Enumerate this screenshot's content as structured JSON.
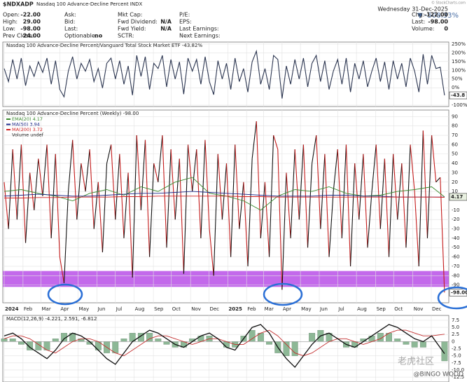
{
  "header": {
    "symbol": "$NDXADP",
    "name": "Nasdaq 100 Advance-Decline Percent INDX",
    "date": "Wednesday 31-Dec-2025",
    "change": "▼ -508.33%",
    "credit": "© StockCharts.com",
    "columns": [
      [
        {
          "label": "Open:",
          "value": "-22.00"
        },
        {
          "label": "High:",
          "value": "29.00"
        },
        {
          "label": "Low:",
          "value": "-98.00"
        },
        {
          "label": "Prev Close:",
          "value": "24.00"
        }
      ],
      [
        {
          "label": "Ask:"
        },
        {
          "label": "Bid:"
        },
        {
          "label": "Last:"
        },
        {
          "label": "Optionable:",
          "value": "no"
        }
      ],
      [
        {
          "label": "Mkt Cap:"
        },
        {
          "label": "Fwd Dividend:",
          "value": "N/A"
        },
        {
          "label": "Fwd Yield:",
          "value": "N/A"
        },
        {
          "label": "SCTR:"
        }
      ],
      [
        {
          "label": "P/E:"
        },
        {
          "label": "EPS:"
        },
        {
          "label": "Last Earnings:"
        },
        {
          "label": "Next Earnings:"
        }
      ],
      [
        {
          "label": "Chg:",
          "value": "-122.00"
        },
        {
          "label": "Last:",
          "value": "-98.00"
        },
        {
          "label": "Volume:",
          "value": "0"
        }
      ]
    ]
  },
  "watermark": {
    "brand": "老虎社区",
    "author": "@BINGO WOOD"
  },
  "chart_data": [
    {
      "type": "line",
      "title": "Nasdaq 100 Advance-Decline Percent/Vanguard Total Stock Market ETF -43.82%",
      "xlim": [
        0,
        104
      ],
      "ylim": [
        -108,
        262
      ],
      "yticks": [
        {
          "value": 250,
          "label": "250%"
        },
        {
          "value": 200,
          "label": "200%"
        },
        {
          "value": 150,
          "label": "150%"
        },
        {
          "value": 100,
          "label": "100%"
        },
        {
          "value": 50,
          "label": "50%"
        },
        {
          "value": 0,
          "label": "0%"
        },
        {
          "value": -100,
          "label": "-100%"
        }
      ],
      "grid": true,
      "tags": [
        {
          "value": -43.82,
          "label": "-43.8",
          "color": "#ffffff"
        }
      ],
      "series": [
        {
          "name": "Nasdaq 100 Advance-Decline Percent/Vanguard Total Stock Market ETF",
          "color": "#2b3550",
          "values": [
            110,
            35,
            162,
            50,
            170,
            12,
            125,
            65,
            148,
            88,
            170,
            20,
            155,
            -10,
            -52,
            95,
            178,
            50,
            140,
            95,
            162,
            35,
            110,
            -2,
            140,
            170,
            50,
            155,
            20,
            125,
            -43,
            185,
            65,
            178,
            -10,
            140,
            110,
            185,
            5,
            162,
            50,
            148,
            -37,
            170,
            95,
            162,
            20,
            178,
            35,
            -40,
            155,
            50,
            140,
            -10,
            170,
            35,
            110,
            -25,
            148,
            210,
            20,
            110,
            -10,
            185,
            162,
            -62,
            125,
            20,
            162,
            50,
            170,
            5,
            140,
            185,
            35,
            155,
            -10,
            95,
            162,
            20,
            170,
            -25,
            140,
            50,
            155,
            5,
            95,
            170,
            35,
            148,
            -10,
            155,
            50,
            140,
            5,
            170,
            95,
            -25,
            192,
            20,
            185,
            110,
            118,
            -43.82
          ]
        }
      ]
    },
    {
      "type": "line",
      "title": "Nasdaq 100 Advance-Decline Percent (Weekly) -98.00",
      "xlim": [
        0,
        104
      ],
      "ylim": [
        -109,
        97
      ],
      "yticks": [
        90,
        80,
        70,
        60,
        50,
        40,
        30,
        20,
        10,
        -10,
        -20,
        -30,
        -40,
        -50,
        -60,
        -70,
        -80,
        -90
      ],
      "xticks": [
        {
          "value": 0,
          "label": "2024"
        },
        {
          "value": 4.4,
          "label": "Feb"
        },
        {
          "value": 8.6,
          "label": "Mar"
        },
        {
          "value": 13,
          "label": "Apr"
        },
        {
          "value": 17.3,
          "label": "May"
        },
        {
          "value": 21.7,
          "label": "Jun"
        },
        {
          "value": 26,
          "label": "Jul"
        },
        {
          "value": 30.4,
          "label": "Aug"
        },
        {
          "value": 34.9,
          "label": "Sep"
        },
        {
          "value": 39.1,
          "label": "Oct"
        },
        {
          "value": 43.6,
          "label": "Nov"
        },
        {
          "value": 47.9,
          "label": "Dec"
        },
        {
          "value": 52.3,
          "label": "2025"
        },
        {
          "value": 56.7,
          "label": "Feb"
        },
        {
          "value": 60.7,
          "label": "Mar"
        },
        {
          "value": 65,
          "label": "Apr"
        },
        {
          "value": 69.3,
          "label": "May"
        },
        {
          "value": 73.7,
          "label": "Jun"
        },
        {
          "value": 78,
          "label": "Jul"
        },
        {
          "value": 82.4,
          "label": "Aug"
        },
        {
          "value": 86.9,
          "label": "Sep"
        },
        {
          "value": 91.1,
          "label": "Oct"
        },
        {
          "value": 95.6,
          "label": "Nov"
        },
        {
          "value": 99.9,
          "label": "Dec"
        }
      ],
      "grid": true,
      "highlight_band": [
        -92,
        -75
      ],
      "highlight_color": "#b84fe8",
      "tags": [
        {
          "value": 4.17,
          "label": "4.17",
          "color": "#e8f0e0"
        },
        {
          "value": -98,
          "label": "-98.00",
          "color": "#ffffff"
        }
      ],
      "legend_extra": "Volume undef",
      "series": [
        {
          "name": "Nasdaq 100 Advance-Decline Percent (Weekly)",
          "color": "#111111",
          "down_color": "#c41b1b",
          "values": [
            20,
            -30,
            55,
            -20,
            60,
            -45,
            30,
            -10,
            45,
            5,
            60,
            -40,
            50,
            -60,
            -88,
            10,
            65,
            -20,
            40,
            10,
            55,
            -30,
            20,
            -55,
            40,
            60,
            -20,
            50,
            -40,
            30,
            -82,
            70,
            -10,
            65,
            -60,
            40,
            20,
            70,
            -50,
            55,
            -20,
            45,
            -78,
            60,
            10,
            55,
            -40,
            65,
            -30,
            -80,
            50,
            -20,
            40,
            -60,
            60,
            -30,
            20,
            -70,
            45,
            85,
            -40,
            20,
            -60,
            70,
            55,
            -95,
            30,
            -40,
            55,
            -20,
            60,
            -50,
            40,
            70,
            -30,
            50,
            -60,
            10,
            55,
            -40,
            60,
            -70,
            40,
            -20,
            50,
            -50,
            10,
            60,
            -30,
            45,
            -60,
            50,
            -20,
            40,
            -50,
            60,
            10,
            -70,
            75,
            -40,
            70,
            20,
            25,
            -98
          ]
        },
        {
          "name": "EMA(20) 4.17",
          "color": "#3a8a2e",
          "x": [
            0,
            4,
            8,
            12,
            16,
            20,
            24,
            28,
            32,
            36,
            40,
            44,
            48,
            52,
            56,
            60,
            64,
            68,
            72,
            76,
            80,
            84,
            88,
            92,
            96,
            100,
            103
          ],
          "values": [
            10,
            12,
            8,
            5,
            0,
            8,
            12,
            6,
            15,
            10,
            20,
            25,
            8,
            5,
            0,
            -10,
            5,
            12,
            10,
            15,
            8,
            5,
            6,
            10,
            12,
            15,
            4.17
          ]
        },
        {
          "name": "MA(50) 3.94",
          "color": "#1f2a8a",
          "x": [
            0,
            4,
            8,
            12,
            16,
            20,
            24,
            28,
            32,
            36,
            40,
            44,
            48,
            52,
            56,
            60,
            64,
            68,
            72,
            76,
            80,
            84,
            88,
            92,
            96,
            100,
            103
          ],
          "values": [
            5,
            6,
            7,
            6,
            5,
            5,
            6,
            7,
            8,
            8,
            9,
            10,
            9,
            8,
            7,
            6,
            5,
            5,
            5,
            6,
            6,
            5,
            5,
            4,
            4,
            4,
            3.94
          ]
        },
        {
          "name": "MA(200) 3.72",
          "color": "#d02020",
          "x": [
            0,
            4,
            8,
            12,
            16,
            20,
            24,
            28,
            32,
            36,
            40,
            44,
            48,
            52,
            56,
            60,
            64,
            68,
            72,
            76,
            80,
            84,
            88,
            92,
            96,
            100,
            103
          ],
          "values": [
            3,
            3,
            3.5,
            3.5,
            4,
            4,
            4,
            4.5,
            4.5,
            5,
            5,
            5,
            5,
            5,
            4.5,
            4.5,
            4,
            4,
            4,
            4,
            4,
            4,
            4,
            4,
            4,
            4,
            3.72
          ]
        }
      ]
    },
    {
      "type": "macd",
      "title": "MACD(12,26,9) -4.221, 2.591, -6.812",
      "xlim": [
        0,
        104
      ],
      "ylim": [
        -14.2,
        9.2
      ],
      "yticks": [
        {
          "value": 7.5,
          "label": "7.5"
        },
        {
          "value": 5,
          "label": "5.0"
        },
        {
          "value": 2.5,
          "label": "2.5"
        },
        0,
        {
          "value": -2.5,
          "label": "-2.5"
        },
        {
          "value": -5,
          "label": "-5.0"
        },
        {
          "value": -7.5,
          "label": "-7.5"
        },
        {
          "value": -10,
          "label": "-10.0"
        },
        {
          "value": -12.5,
          "label": "-12.5"
        }
      ],
      "grid": true,
      "x": [
        0,
        2,
        4,
        6,
        8,
        10,
        12,
        14,
        16,
        18,
        20,
        22,
        24,
        26,
        28,
        30,
        32,
        34,
        36,
        38,
        40,
        42,
        44,
        46,
        48,
        50,
        52,
        54,
        56,
        58,
        60,
        62,
        64,
        66,
        68,
        70,
        72,
        74,
        76,
        78,
        80,
        82,
        84,
        86,
        88,
        90,
        92,
        94,
        96,
        98,
        100,
        103
      ],
      "macd": {
        "color": "#111111",
        "values": [
          2,
          3,
          1,
          -2,
          -4,
          -6,
          -3,
          1,
          3,
          2,
          0,
          -3,
          -6,
          -8,
          -4,
          0,
          2,
          4,
          3,
          1,
          -1,
          -2,
          0,
          2,
          3,
          1,
          -2,
          -3,
          1,
          5,
          6,
          3,
          -2,
          -6,
          -9,
          -5,
          -1,
          2,
          3,
          1,
          -1,
          -2,
          0,
          2,
          4,
          6,
          5,
          3,
          1,
          0,
          2,
          -4.221
        ]
      },
      "signal": {
        "color": "#c43030",
        "values": [
          1,
          2,
          2,
          1,
          -1,
          -3,
          -4,
          -2,
          0,
          1,
          1,
          0,
          -2,
          -4,
          -5,
          -3,
          -1,
          1,
          2,
          2,
          1,
          0,
          -1,
          0,
          1,
          1,
          0,
          -1,
          -1,
          1,
          3,
          4,
          2,
          -1,
          -4,
          -5,
          -4,
          -2,
          0,
          1,
          1,
          0,
          -1,
          0,
          1,
          3,
          4,
          4,
          3,
          2,
          2,
          2.591
        ]
      },
      "histogram": {
        "color": "#8db896",
        "values": [
          1,
          1,
          -1,
          -3,
          -3,
          -3,
          1,
          3,
          3,
          1,
          -1,
          -3,
          -4,
          -4,
          1,
          3,
          3,
          3,
          1,
          -1,
          -2,
          -2,
          1,
          2,
          2,
          0,
          -2,
          -2,
          2,
          4,
          3,
          -1,
          -4,
          -5,
          -5,
          0,
          3,
          4,
          3,
          0,
          -2,
          -2,
          1,
          2,
          3,
          3,
          1,
          -1,
          -2,
          -2,
          0,
          -6.812
        ]
      }
    }
  ]
}
